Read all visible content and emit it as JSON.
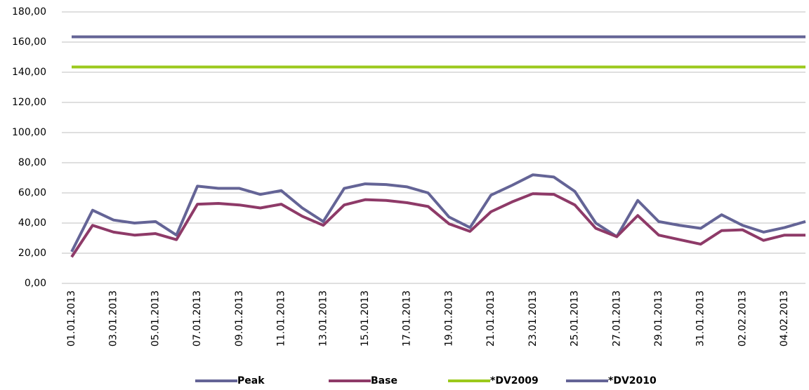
{
  "chart_data": {
    "type": "line",
    "categories": [
      "01.01.2013",
      null,
      "03.01.2013",
      null,
      "05.01.2013",
      null,
      "07.01.2013",
      null,
      "09.01.2013",
      null,
      "11.01.2013",
      null,
      "13.01.2013",
      null,
      "15.01.2013",
      null,
      "17.01.2013",
      null,
      "19.01.2013",
      null,
      "21.01.2013",
      null,
      "23.01.2013",
      null,
      "25.01.2013",
      null,
      "27.01.2013",
      null,
      "29.01.2013",
      null,
      "31.01.2013",
      null,
      "02.02.2013",
      null,
      "04.02.2013",
      null
    ],
    "series": [
      {
        "name": "Peak",
        "color": "#646496",
        "values": [
          21,
          48.5,
          42,
          40,
          41,
          32,
          64.5,
          63,
          63,
          59,
          61.5,
          50,
          41,
          63,
          66,
          65.5,
          64,
          60,
          44,
          37,
          58.5,
          65,
          72,
          70.5,
          61,
          40,
          31,
          55,
          41,
          38.5,
          36.5,
          45.5,
          38.5,
          34,
          37,
          41
        ]
      },
      {
        "name": "Base",
        "color": "#8e3a68",
        "values": [
          17.5,
          38.5,
          34,
          32,
          33,
          29,
          52.5,
          53,
          52,
          50,
          52.5,
          44.5,
          38.5,
          52,
          55.5,
          55,
          53.5,
          51,
          39.5,
          34.5,
          47.5,
          54,
          59.5,
          59,
          52,
          36.5,
          31,
          45,
          32,
          29,
          26,
          35,
          35.5,
          28.5,
          32,
          32
        ]
      },
      {
        "name": "*DV2009",
        "color": "#9bc91c",
        "values": [
          143.5,
          143.5,
          143.5,
          143.5,
          143.5,
          143.5,
          143.5,
          143.5,
          143.5,
          143.5,
          143.5,
          143.5,
          143.5,
          143.5,
          143.5,
          143.5,
          143.5,
          143.5,
          143.5,
          143.5,
          143.5,
          143.5,
          143.5,
          143.5,
          143.5,
          143.5,
          143.5,
          143.5,
          143.5,
          143.5,
          143.5,
          143.5,
          143.5,
          143.5,
          143.5,
          143.5
        ]
      },
      {
        "name": "*DV2010",
        "color": "#646496",
        "values": [
          163.5,
          163.5,
          163.5,
          163.5,
          163.5,
          163.5,
          163.5,
          163.5,
          163.5,
          163.5,
          163.5,
          163.5,
          163.5,
          163.5,
          163.5,
          163.5,
          163.5,
          163.5,
          163.5,
          163.5,
          163.5,
          163.5,
          163.5,
          163.5,
          163.5,
          163.5,
          163.5,
          163.5,
          163.5,
          163.5,
          163.5,
          163.5,
          163.5,
          163.5,
          163.5,
          163.5
        ]
      }
    ],
    "ylim": [
      0,
      180
    ],
    "yticks": [
      {
        "value": 0,
        "label": "0,00"
      },
      {
        "value": 20,
        "label": "20,00"
      },
      {
        "value": 40,
        "label": "40,00"
      },
      {
        "value": 60,
        "label": "60,00"
      },
      {
        "value": 80,
        "label": "80,00"
      },
      {
        "value": 100,
        "label": "100,00"
      },
      {
        "value": 120,
        "label": "120,00"
      },
      {
        "value": 140,
        "label": "140,00"
      },
      {
        "value": 160,
        "label": "160,00"
      },
      {
        "value": 180,
        "label": "180,00"
      }
    ],
    "grid": true,
    "legend": "bottom"
  }
}
